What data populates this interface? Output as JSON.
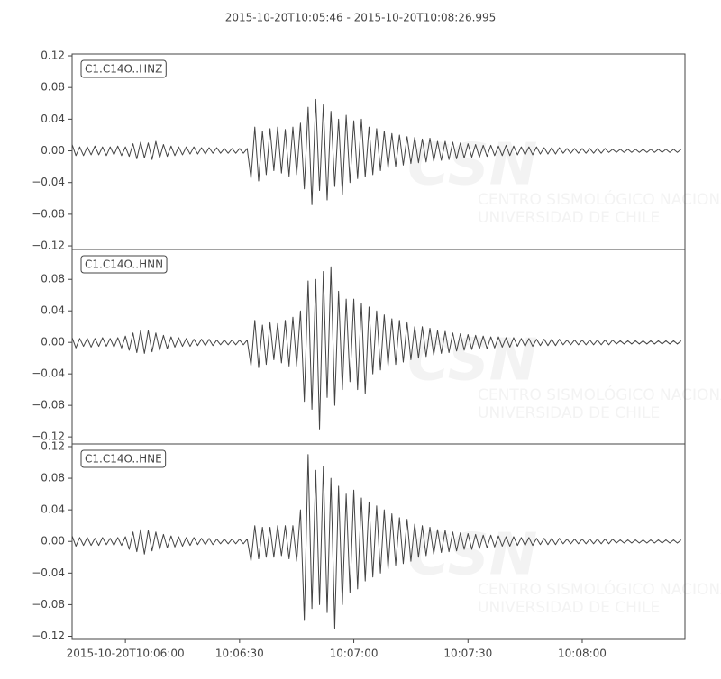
{
  "chart_data": [
    {
      "type": "line",
      "title": "2015-10-20T10:05:46  -  2015-10-20T10:08:26.995",
      "xlim": [
        0,
        160.995
      ],
      "ylim": [
        -0.1245,
        0.1223
      ],
      "yticks": [
        0.12,
        0.08,
        0.04,
        {
          "value": 0,
          "label": "0.00"
        },
        {
          "value": -0.04,
          "label": "−0.04"
        },
        {
          "value": -0.08,
          "label": "−0.08"
        },
        {
          "value": -0.12,
          "label": "−0.12"
        }
      ],
      "grid": false,
      "watermark": {
        "logo": "CSN",
        "lines": [
          "CENTRO SISMOLÓGICO NACIONAL",
          "UNIVERSIDAD DE CHILE"
        ]
      },
      "x": [
        0,
        1,
        2,
        3,
        4,
        5,
        6,
        7,
        8,
        9,
        10,
        11,
        12,
        13,
        14,
        15,
        16,
        17,
        18,
        19,
        20,
        21,
        22,
        23,
        24,
        25,
        26,
        27,
        28,
        29,
        30,
        31,
        32,
        33,
        34,
        35,
        36,
        37,
        38,
        39,
        40,
        41,
        42,
        43,
        44,
        45,
        46,
        47,
        48,
        49,
        50,
        51,
        52,
        53,
        54,
        55,
        56,
        57,
        58,
        59,
        60,
        61,
        62,
        63,
        64,
        65,
        66,
        67,
        68,
        69,
        70,
        71,
        72,
        73,
        74,
        75,
        76,
        77,
        78,
        79,
        80,
        81,
        82,
        83,
        84,
        85,
        86,
        87,
        88,
        89,
        90,
        91,
        92,
        93,
        94,
        95,
        96,
        97,
        98,
        99,
        100,
        101,
        102,
        103,
        104,
        105,
        106,
        107,
        108,
        109,
        110,
        111,
        112,
        113,
        114,
        115,
        116,
        117,
        118,
        119,
        120,
        121,
        122,
        123,
        124,
        125,
        126,
        127,
        128,
        129,
        130,
        131,
        132,
        133,
        134,
        135,
        136,
        137,
        138,
        139,
        140,
        141,
        142,
        143,
        144,
        145,
        146,
        147,
        148,
        149,
        150,
        151,
        152,
        153,
        154,
        155,
        156,
        157,
        158,
        159,
        160
      ],
      "series": [
        {
          "name": "C1.C14O..HNZ",
          "color": "#444444",
          "values": [
            0.008,
            -0.006,
            0.005,
            -0.006,
            0.005,
            -0.005,
            0.006,
            -0.005,
            0.005,
            -0.006,
            0.005,
            -0.005,
            0.006,
            -0.006,
            0.005,
            -0.007,
            0.009,
            -0.01,
            0.011,
            -0.009,
            0.01,
            -0.011,
            0.012,
            -0.009,
            0.008,
            -0.007,
            0.006,
            -0.006,
            0.005,
            -0.005,
            0.005,
            -0.004,
            0.005,
            -0.004,
            0.004,
            -0.004,
            0.004,
            -0.003,
            0.004,
            -0.003,
            0.003,
            -0.003,
            0.003,
            -0.003,
            0.003,
            -0.003,
            0.003,
            -0.035,
            0.03,
            -0.038,
            0.025,
            -0.03,
            0.028,
            -0.025,
            0.03,
            -0.028,
            0.027,
            -0.032,
            0.03,
            -0.03,
            0.035,
            -0.048,
            0.055,
            -0.068,
            0.065,
            -0.05,
            0.058,
            -0.062,
            0.05,
            -0.045,
            0.04,
            -0.055,
            0.045,
            -0.04,
            0.038,
            -0.035,
            0.04,
            -0.033,
            0.03,
            -0.03,
            0.028,
            -0.025,
            0.025,
            -0.022,
            0.022,
            -0.02,
            0.02,
            -0.018,
            0.018,
            -0.016,
            0.017,
            -0.015,
            0.015,
            -0.014,
            0.016,
            -0.013,
            0.012,
            -0.012,
            0.012,
            -0.011,
            0.011,
            -0.01,
            0.01,
            -0.009,
            0.009,
            -0.008,
            0.008,
            -0.008,
            0.007,
            -0.007,
            0.007,
            -0.006,
            0.006,
            -0.006,
            0.007,
            -0.006,
            0.006,
            -0.005,
            0.005,
            -0.005,
            0.005,
            -0.005,
            0.005,
            -0.004,
            0.004,
            -0.004,
            0.004,
            -0.004,
            0.004,
            -0.003,
            0.003,
            -0.003,
            0.003,
            -0.003,
            0.003,
            -0.003,
            0.003,
            -0.003,
            0.003,
            -0.003,
            0.003,
            -0.002,
            0.002,
            -0.002,
            0.002,
            -0.002,
            0.002,
            -0.002,
            0.002,
            -0.002,
            0.002,
            -0.002,
            0.002,
            -0.002,
            0.002,
            -0.002,
            0.002,
            -0.002,
            0.002,
            -0.002,
            0.002
          ]
        }
      ]
    },
    {
      "type": "line",
      "xlim": [
        0,
        160.995
      ],
      "ylim": [
        -0.129,
        0.118
      ],
      "yticks": [
        0.08,
        0.04,
        {
          "value": 0,
          "label": "0.00"
        },
        {
          "value": -0.04,
          "label": "−0.04"
        },
        {
          "value": -0.08,
          "label": "−0.08"
        },
        {
          "value": -0.12,
          "label": "−0.12"
        }
      ],
      "grid": false,
      "watermark": {
        "logo": "CSN",
        "lines": [
          "CENTRO SISMOLÓGICO NACIONAL",
          "UNIVERSIDAD DE CHILE"
        ]
      },
      "x": [
        0,
        1,
        2,
        3,
        4,
        5,
        6,
        7,
        8,
        9,
        10,
        11,
        12,
        13,
        14,
        15,
        16,
        17,
        18,
        19,
        20,
        21,
        22,
        23,
        24,
        25,
        26,
        27,
        28,
        29,
        30,
        31,
        32,
        33,
        34,
        35,
        36,
        37,
        38,
        39,
        40,
        41,
        42,
        43,
        44,
        45,
        46,
        47,
        48,
        49,
        50,
        51,
        52,
        53,
        54,
        55,
        56,
        57,
        58,
        59,
        60,
        61,
        62,
        63,
        64,
        65,
        66,
        67,
        68,
        69,
        70,
        71,
        72,
        73,
        74,
        75,
        76,
        77,
        78,
        79,
        80,
        81,
        82,
        83,
        84,
        85,
        86,
        87,
        88,
        89,
        90,
        91,
        92,
        93,
        94,
        95,
        96,
        97,
        98,
        99,
        100,
        101,
        102,
        103,
        104,
        105,
        106,
        107,
        108,
        109,
        110,
        111,
        112,
        113,
        114,
        115,
        116,
        117,
        118,
        119,
        120,
        121,
        122,
        123,
        124,
        125,
        126,
        127,
        128,
        129,
        130,
        131,
        132,
        133,
        134,
        135,
        136,
        137,
        138,
        139,
        140,
        141,
        142,
        143,
        144,
        145,
        146,
        147,
        148,
        149,
        150,
        151,
        152,
        153,
        154,
        155,
        156,
        157,
        158,
        159,
        160
      ],
      "series": [
        {
          "name": "C1.C14O..HNN",
          "color": "#444444",
          "values": [
            0.006,
            -0.007,
            0.005,
            -0.005,
            0.005,
            -0.006,
            0.005,
            -0.005,
            0.006,
            -0.005,
            0.005,
            -0.006,
            0.006,
            -0.007,
            0.008,
            -0.01,
            0.012,
            -0.013,
            0.015,
            -0.014,
            0.015,
            -0.012,
            0.012,
            -0.01,
            0.009,
            -0.008,
            0.007,
            -0.006,
            0.006,
            -0.005,
            0.005,
            -0.005,
            0.004,
            -0.004,
            0.004,
            -0.004,
            0.004,
            -0.004,
            0.003,
            -0.003,
            0.003,
            -0.003,
            0.003,
            -0.003,
            0.003,
            -0.003,
            0.003,
            -0.03,
            0.028,
            -0.032,
            0.022,
            -0.028,
            0.025,
            -0.022,
            0.024,
            -0.026,
            0.028,
            -0.03,
            0.032,
            -0.03,
            0.04,
            -0.075,
            0.078,
            -0.085,
            0.08,
            -0.11,
            0.09,
            -0.07,
            0.096,
            -0.08,
            0.065,
            -0.06,
            0.055,
            -0.05,
            0.055,
            -0.06,
            0.05,
            -0.065,
            0.045,
            -0.04,
            0.04,
            -0.035,
            0.035,
            -0.03,
            0.03,
            -0.028,
            0.028,
            -0.025,
            0.025,
            -0.022,
            0.02,
            -0.02,
            0.02,
            -0.018,
            0.018,
            -0.016,
            0.015,
            -0.014,
            0.014,
            -0.013,
            0.012,
            -0.011,
            0.011,
            -0.01,
            0.01,
            -0.009,
            0.009,
            -0.008,
            0.008,
            -0.008,
            0.007,
            -0.007,
            0.007,
            -0.006,
            0.006,
            -0.006,
            0.006,
            -0.005,
            0.005,
            -0.005,
            0.005,
            -0.005,
            0.004,
            -0.004,
            0.004,
            -0.004,
            0.004,
            -0.004,
            0.004,
            -0.003,
            0.003,
            -0.003,
            0.003,
            -0.003,
            0.003,
            -0.003,
            0.003,
            -0.003,
            0.003,
            -0.003,
            0.003,
            -0.003,
            0.003,
            -0.002,
            0.002,
            -0.002,
            0.002,
            -0.002,
            0.002,
            -0.002,
            0.002,
            -0.002,
            0.002,
            -0.002,
            0.002,
            -0.002,
            0.002,
            -0.002,
            0.002,
            -0.002,
            0.002
          ]
        }
      ]
    },
    {
      "type": "line",
      "xlim": [
        0,
        160.995
      ],
      "ylim": [
        -0.124,
        0.1234
      ],
      "yticks": [
        0.12,
        0.08,
        0.04,
        {
          "value": 0,
          "label": "0.00"
        },
        {
          "value": -0.04,
          "label": "−0.04"
        },
        {
          "value": -0.08,
          "label": "−0.08"
        },
        {
          "value": -0.12,
          "label": "−0.12"
        }
      ],
      "xticks": [
        {
          "value": 14,
          "label": "2015-10-20T10:06:00"
        },
        {
          "value": 44,
          "label": "10:06:30"
        },
        {
          "value": 74,
          "label": "10:07:00"
        },
        {
          "value": 104,
          "label": "10:07:30"
        },
        {
          "value": 134,
          "label": "10:08:00"
        }
      ],
      "grid": false,
      "watermark": {
        "logo": "CSN",
        "lines": [
          "CENTRO SISMOLÓGICO NACIONAL",
          "UNIVERSIDAD DE CHILE"
        ]
      },
      "x": [
        0,
        1,
        2,
        3,
        4,
        5,
        6,
        7,
        8,
        9,
        10,
        11,
        12,
        13,
        14,
        15,
        16,
        17,
        18,
        19,
        20,
        21,
        22,
        23,
        24,
        25,
        26,
        27,
        28,
        29,
        30,
        31,
        32,
        33,
        34,
        35,
        36,
        37,
        38,
        39,
        40,
        41,
        42,
        43,
        44,
        45,
        46,
        47,
        48,
        49,
        50,
        51,
        52,
        53,
        54,
        55,
        56,
        57,
        58,
        59,
        60,
        61,
        62,
        63,
        64,
        65,
        66,
        67,
        68,
        69,
        70,
        71,
        72,
        73,
        74,
        75,
        76,
        77,
        78,
        79,
        80,
        81,
        82,
        83,
        84,
        85,
        86,
        87,
        88,
        89,
        90,
        91,
        92,
        93,
        94,
        95,
        96,
        97,
        98,
        99,
        100,
        101,
        102,
        103,
        104,
        105,
        106,
        107,
        108,
        109,
        110,
        111,
        112,
        113,
        114,
        115,
        116,
        117,
        118,
        119,
        120,
        121,
        122,
        123,
        124,
        125,
        126,
        127,
        128,
        129,
        130,
        131,
        132,
        133,
        134,
        135,
        136,
        137,
        138,
        139,
        140,
        141,
        142,
        143,
        144,
        145,
        146,
        147,
        148,
        149,
        150,
        151,
        152,
        153,
        154,
        155,
        156,
        157,
        158,
        159,
        160
      ],
      "series": [
        {
          "name": "C1.C14O..HNE",
          "color": "#444444",
          "values": [
            0.007,
            -0.006,
            0.005,
            -0.005,
            0.005,
            -0.005,
            0.004,
            -0.005,
            0.005,
            -0.004,
            0.004,
            -0.005,
            0.005,
            -0.005,
            0.006,
            -0.01,
            0.012,
            -0.013,
            0.015,
            -0.016,
            0.014,
            -0.012,
            0.012,
            -0.01,
            0.009,
            -0.008,
            0.007,
            -0.007,
            0.006,
            -0.006,
            0.005,
            -0.005,
            0.005,
            -0.004,
            0.004,
            -0.004,
            0.004,
            -0.004,
            0.003,
            -0.003,
            0.003,
            -0.003,
            0.003,
            -0.003,
            0.003,
            -0.003,
            0.003,
            -0.025,
            0.02,
            -0.022,
            0.018,
            -0.02,
            0.018,
            -0.02,
            0.02,
            -0.018,
            0.02,
            -0.022,
            0.02,
            -0.025,
            0.04,
            -0.1,
            0.11,
            -0.085,
            0.09,
            -0.08,
            0.095,
            -0.09,
            0.08,
            -0.11,
            0.07,
            -0.08,
            0.06,
            -0.065,
            0.065,
            -0.06,
            0.055,
            -0.05,
            0.05,
            -0.045,
            0.045,
            -0.04,
            0.04,
            -0.035,
            0.035,
            -0.03,
            0.03,
            -0.028,
            0.028,
            -0.025,
            0.022,
            -0.02,
            0.02,
            -0.018,
            0.018,
            -0.016,
            0.015,
            -0.014,
            0.014,
            -0.013,
            0.012,
            -0.012,
            0.011,
            -0.01,
            0.01,
            -0.01,
            0.009,
            -0.009,
            0.008,
            -0.008,
            0.008,
            -0.007,
            0.007,
            -0.006,
            0.006,
            -0.006,
            0.006,
            -0.005,
            0.005,
            -0.005,
            0.005,
            -0.005,
            0.004,
            -0.004,
            0.004,
            -0.004,
            0.004,
            -0.004,
            0.004,
            -0.003,
            0.003,
            -0.003,
            0.003,
            -0.003,
            0.003,
            -0.003,
            0.003,
            -0.003,
            0.003,
            -0.003,
            0.003,
            -0.003,
            0.003,
            -0.002,
            0.002,
            -0.002,
            0.002,
            -0.002,
            0.002,
            -0.002,
            0.002,
            -0.002,
            0.002,
            -0.002,
            0.002,
            -0.002,
            0.002,
            -0.002,
            0.002,
            -0.002,
            0.002
          ]
        }
      ]
    }
  ]
}
